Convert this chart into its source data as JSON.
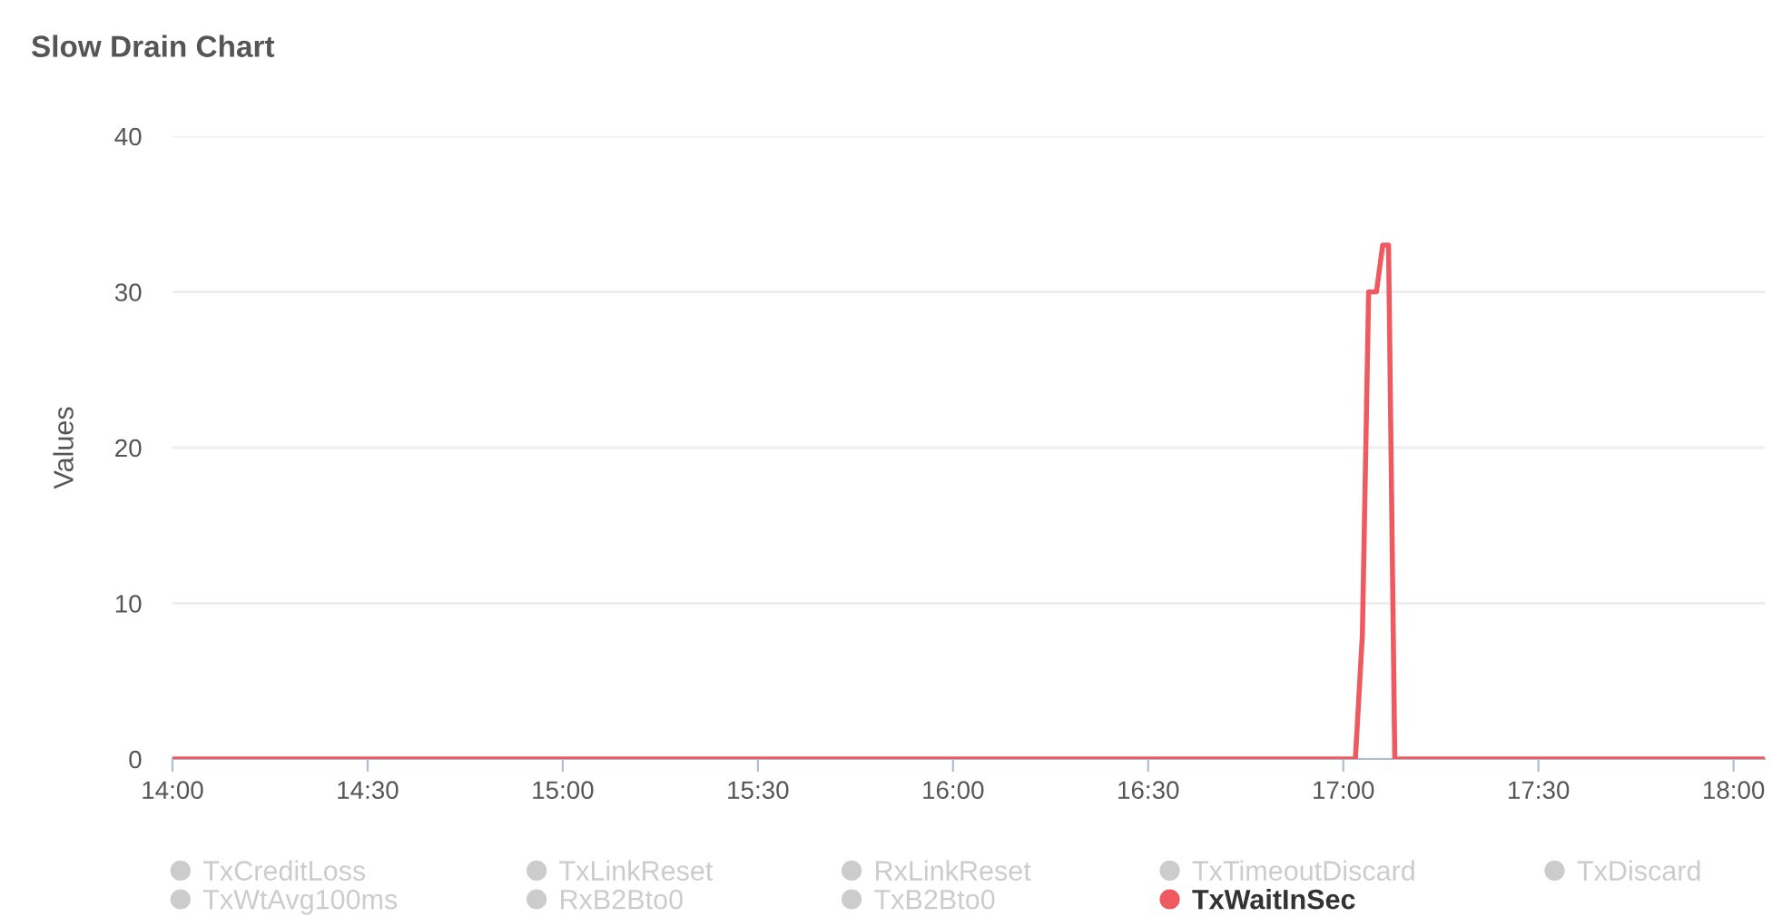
{
  "chart_data": {
    "type": "line",
    "title": "Slow Drain Chart",
    "ylabel": "Values",
    "xlim": [
      14,
      18.08
    ],
    "ylim": [
      0,
      40
    ],
    "xticks": [
      {
        "value": 14,
        "label": "14:00"
      },
      {
        "value": 14.5,
        "label": "14:30"
      },
      {
        "value": 15,
        "label": "15:00"
      },
      {
        "value": 15.5,
        "label": "15:30"
      },
      {
        "value": 16,
        "label": "16:00"
      },
      {
        "value": 16.5,
        "label": "16:30"
      },
      {
        "value": 17,
        "label": "17:00"
      },
      {
        "value": 17.5,
        "label": "17:30"
      },
      {
        "value": 18,
        "label": "18:00"
      }
    ],
    "yticks": [
      0,
      10,
      20,
      30,
      40
    ],
    "grid": "y",
    "legend": "bottom",
    "marker": "none",
    "line_style": "solid",
    "series": [
      {
        "name": "TxCreditLoss",
        "color": "#cccccc"
      },
      {
        "name": "TxLinkReset",
        "color": "#cccccc"
      },
      {
        "name": "RxLinkReset",
        "color": "#cccccc"
      },
      {
        "name": "TxTimeoutDiscard",
        "color": "#cccccc"
      },
      {
        "name": "TxDiscard",
        "color": "#cccccc"
      },
      {
        "name": "TxWtAvg100ms",
        "color": "#cccccc"
      },
      {
        "name": "RxB2Bto0",
        "color": "#cccccc"
      },
      {
        "name": "TxB2Bto0",
        "color": "#cccccc"
      },
      {
        "name": "TxWaitInSec",
        "color": "#ee5a5f",
        "x": [
          14.0,
          17.031,
          17.049,
          17.065,
          17.085,
          17.101,
          17.116,
          17.132,
          18.079
        ],
        "values": [
          0,
          0,
          8,
          30,
          30,
          33,
          33,
          0,
          0
        ]
      }
    ]
  }
}
